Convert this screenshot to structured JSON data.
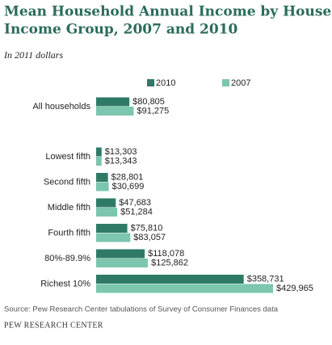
{
  "chart_data": {
    "type": "bar",
    "orientation": "horizontal",
    "title": [
      "Mean Household Annual Income by Household",
      "Income Group, 2007 and 2010"
    ],
    "subtitle": "In 2011 dollars",
    "categories": [
      "All households",
      "Lowest fifth",
      "Second fifth",
      "Middle fifth",
      "Fourth fifth",
      "80%-89.9%",
      "Richest 10%"
    ],
    "series": [
      {
        "name": "2010",
        "color": "#2f7a67",
        "values": [
          80805,
          13303,
          28801,
          47683,
          75810,
          118078,
          358731
        ],
        "value_labels": [
          "$80,805",
          "$13,303",
          "$28,801",
          "$47,683",
          "$75,810",
          "$118,078",
          "$358,731"
        ]
      },
      {
        "name": "2007",
        "color": "#7cc5ae",
        "values": [
          91275,
          13343,
          30699,
          51284,
          83057,
          125862,
          429965
        ],
        "value_labels": [
          "$91,275",
          "$13,343",
          "$30,699",
          "$51,284",
          "$83,057",
          "$125,862",
          "$429,965"
        ]
      }
    ],
    "source": "Source: Pew Research Center tabulations of Survey of Consumer Finances data",
    "credit": "PEW RESEARCH CENTER"
  }
}
